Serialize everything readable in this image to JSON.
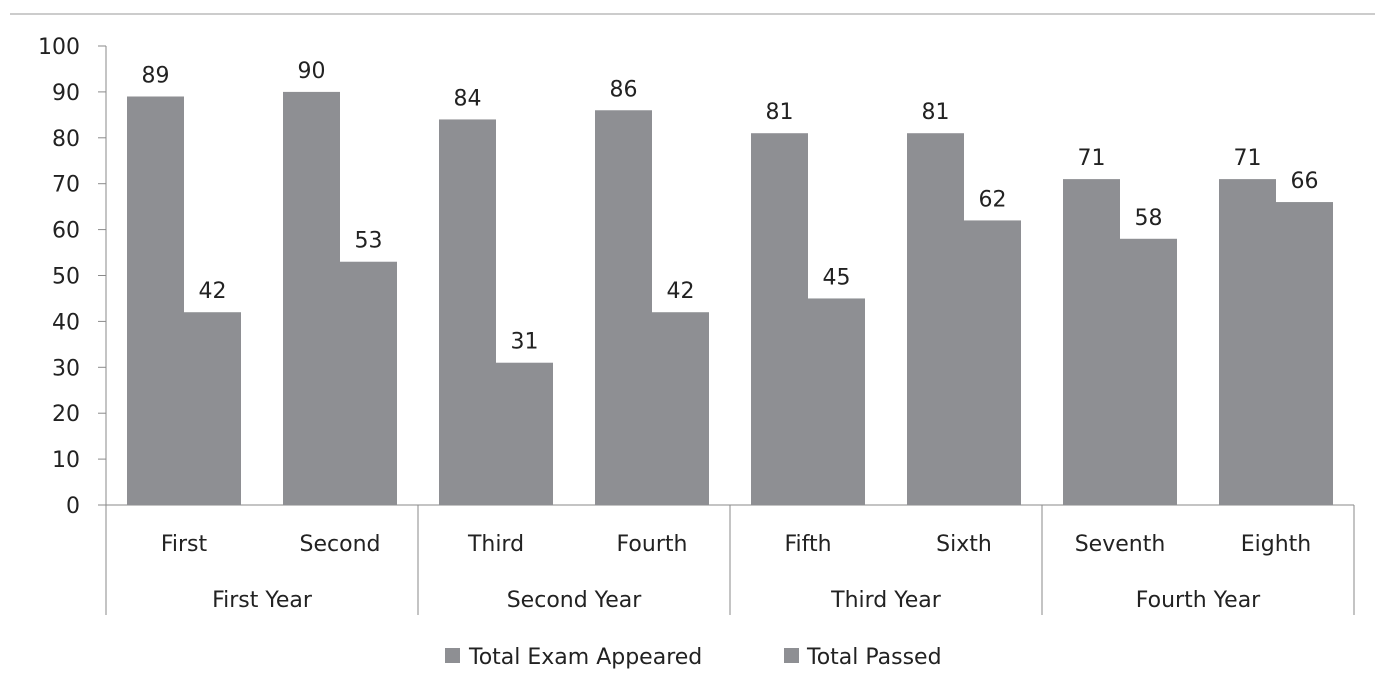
{
  "chart_data": {
    "type": "bar",
    "title": "",
    "xlabel": "",
    "ylabel": "",
    "ylim": [
      0,
      100
    ],
    "yticks": [
      0,
      10,
      20,
      30,
      40,
      50,
      60,
      70,
      80,
      90,
      100
    ],
    "grid": false,
    "legend_position": "bottom",
    "categories": [
      "First",
      "Second",
      "Third",
      "Fourth",
      "Fifth",
      "Sixth",
      "Seventh",
      "Eighth"
    ],
    "groups": [
      {
        "label": "First Year",
        "categories": [
          "First",
          "Second"
        ]
      },
      {
        "label": "Second Year",
        "categories": [
          "Third",
          "Fourth"
        ]
      },
      {
        "label": "Third Year",
        "categories": [
          "Fifth",
          "Sixth"
        ]
      },
      {
        "label": "Fourth Year",
        "categories": [
          "Seventh",
          "Eighth"
        ]
      }
    ],
    "series": [
      {
        "name": "Total Exam Appeared",
        "color": "#8e8f93",
        "values": [
          89,
          90,
          84,
          86,
          81,
          81,
          71,
          71
        ]
      },
      {
        "name": "Total Passed",
        "color": "#8e8f93",
        "values": [
          42,
          53,
          31,
          42,
          45,
          62,
          58,
          66
        ]
      }
    ]
  }
}
